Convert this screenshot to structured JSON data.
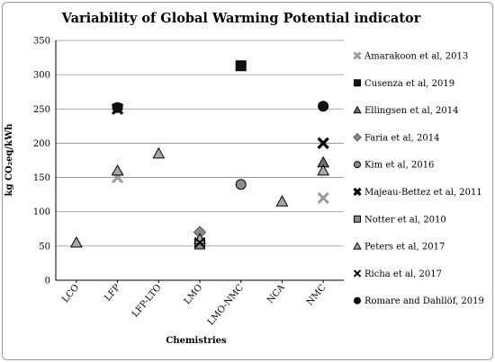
{
  "chart_data": {
    "type": "scatter",
    "title": "Variability of Global Warming Potential indicator",
    "xlabel": "Chemistries",
    "ylabel": "kg CO₂eq/kWh",
    "ylim": [
      0,
      350
    ],
    "yticks": [
      0,
      50,
      100,
      150,
      200,
      250,
      300,
      350
    ],
    "categories": [
      "LCO",
      "LFP",
      "LFP-LTO",
      "LMO",
      "LMO-NMC",
      "NCA",
      "NMC"
    ],
    "grid": true,
    "legend_position": "right",
    "series": [
      {
        "name": "Amarakoon et al, 2013",
        "marker": "cross-thick",
        "color": "#9a9a9a",
        "points": [
          {
            "x": "LFP",
            "y": 150
          },
          {
            "x": "NMC",
            "y": 120
          }
        ]
      },
      {
        "name": "Cusenza et al, 2019",
        "marker": "square",
        "color": "#111111",
        "points": [
          {
            "x": "LMO-NMC",
            "y": 313
          }
        ]
      },
      {
        "name": "Ellingsen et al, 2014",
        "marker": "triangle",
        "color": "#707070",
        "points": [
          {
            "x": "NMC",
            "y": 172
          }
        ]
      },
      {
        "name": "Faria et al, 2014",
        "marker": "diamond",
        "color": "#8a8a8a",
        "points": [
          {
            "x": "LMO",
            "y": 70
          }
        ]
      },
      {
        "name": "Kim et al, 2016",
        "marker": "circle",
        "color": "#8c8c8c",
        "points": [
          {
            "x": "LMO-NMC",
            "y": 140
          }
        ]
      },
      {
        "name": "Majeau-Bettez et al, 2011",
        "marker": "x-thick",
        "color": "#000000",
        "points": [
          {
            "x": "LFP",
            "y": 250
          },
          {
            "x": "NMC",
            "y": 200
          }
        ]
      },
      {
        "name": "Notter et al, 2010",
        "marker": "square",
        "color": "#8c8c8c",
        "points": [
          {
            "x": "LMO",
            "y": 53
          }
        ]
      },
      {
        "name": "Peters et al, 2017",
        "marker": "triangle",
        "color": "#a8a8a8",
        "points": [
          {
            "x": "LCO",
            "y": 55
          },
          {
            "x": "LFP",
            "y": 160
          },
          {
            "x": "LFP-LTO",
            "y": 185
          },
          {
            "x": "LMO",
            "y": 60
          },
          {
            "x": "NCA",
            "y": 115
          },
          {
            "x": "NMC",
            "y": 160
          }
        ]
      },
      {
        "name": "Richa et al, 2017",
        "marker": "x-thin",
        "color": "#000000",
        "points": [
          {
            "x": "LMO",
            "y": 55
          },
          {
            "x": "NMC",
            "y": 200
          }
        ]
      },
      {
        "name": "Romare and Dahllöf, 2019",
        "marker": "circle",
        "color": "#111111",
        "points": [
          {
            "x": "LFP",
            "y": 252
          },
          {
            "x": "NMC",
            "y": 254
          }
        ]
      }
    ]
  }
}
